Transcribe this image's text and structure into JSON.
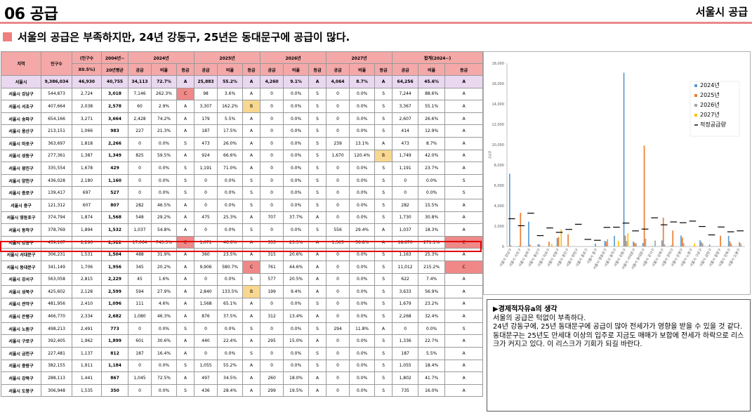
{
  "header": {
    "title": "06 공급",
    "right": "서울시 공급"
  },
  "subtitle": "서울의 공급은 부족하지만, 24년 강동구, 25년은 동대문구에 공급이 많다.",
  "table": {
    "headers_top": [
      "지역",
      "인구수",
      "(인구수",
      "2004년~",
      "2024년",
      "2025년",
      "2026년",
      "2027년",
      "합계(2024~)"
    ],
    "headers_sub": [
      "X0.5%)",
      "20년평균",
      "공급",
      "비율",
      "등급",
      "공급",
      "비율",
      "등급",
      "공급",
      "비율",
      "등급",
      "공급",
      "비율",
      "등급",
      "공급",
      "비율",
      "등급"
    ],
    "rows": [
      [
        "서울시",
        "9,386,034",
        "46,930",
        "40,755",
        "34,113",
        "72.7%",
        "A",
        "25,883",
        "55.2%",
        "A",
        "4,260",
        "9.1%",
        "A",
        "4,064",
        "8.7%",
        "A",
        "64,256",
        "45.6%",
        "A"
      ],
      [
        "서울시 강남구",
        "544,873",
        "2,724",
        "3,018",
        "7,146",
        "262.3%",
        "C",
        "98",
        "3.6%",
        "A",
        "0",
        "0.0%",
        "S",
        "0",
        "0.0%",
        "S",
        "7,244",
        "88.6%",
        "A"
      ],
      [
        "서울시 서초구",
        "407,664",
        "2,038",
        "2,578",
        "60",
        "2.9%",
        "A",
        "3,307",
        "162.2%",
        "B",
        "0",
        "0.0%",
        "S",
        "0",
        "0.0%",
        "S",
        "3,367",
        "55.1%",
        "A"
      ],
      [
        "서울시 송파구",
        "654,166",
        "3,271",
        "3,664",
        "2,428",
        "74.2%",
        "A",
        "179",
        "5.5%",
        "A",
        "0",
        "0.0%",
        "S",
        "0",
        "0.0%",
        "S",
        "2,607",
        "26.6%",
        "A"
      ],
      [
        "서울시 용산구",
        "213,151",
        "1,066",
        "983",
        "227",
        "21.3%",
        "A",
        "187",
        "17.5%",
        "A",
        "0",
        "0.0%",
        "S",
        "0",
        "0.0%",
        "S",
        "414",
        "12.9%",
        "A"
      ],
      [
        "서울시 마포구",
        "363,697",
        "1,818",
        "2,266",
        "0",
        "0.0%",
        "S",
        "473",
        "26.0%",
        "A",
        "0",
        "0.0%",
        "S",
        "239",
        "13.1%",
        "A",
        "473",
        "8.7%",
        "A"
      ],
      [
        "서울시 성동구",
        "277,361",
        "1,387",
        "1,349",
        "825",
        "59.5%",
        "A",
        "924",
        "66.6%",
        "A",
        "0",
        "0.0%",
        "S",
        "1,670",
        "120.4%",
        "B",
        "1,749",
        "42.0%",
        "A"
      ],
      [
        "서울시 광진구",
        "335,554",
        "1,678",
        "429",
        "0",
        "0.0%",
        "S",
        "1,191",
        "71.0%",
        "A",
        "0",
        "0.0%",
        "S",
        "0",
        "0.0%",
        "S",
        "1,191",
        "23.7%",
        "A"
      ],
      [
        "서울시 양천구",
        "436,028",
        "2,180",
        "1,160",
        "0",
        "0.0%",
        "S",
        "0",
        "0.0%",
        "S",
        "0",
        "0.0%",
        "S",
        "0",
        "0.0%",
        "S",
        "0",
        "0.0%",
        "S"
      ],
      [
        "서울시 종로구",
        "139,417",
        "697",
        "527",
        "0",
        "0.0%",
        "S",
        "0",
        "0.0%",
        "S",
        "0",
        "0.0%",
        "S",
        "0",
        "0.0%",
        "S",
        "0",
        "0.0%",
        "S"
      ],
      [
        "서울시 중구",
        "121,312",
        "607",
        "807",
        "282",
        "46.5%",
        "A",
        "0",
        "0.0%",
        "S",
        "0",
        "0.0%",
        "S",
        "0",
        "0.0%",
        "S",
        "282",
        "15.5%",
        "A"
      ],
      [
        "서울시 영등포구",
        "374,794",
        "1,874",
        "1,568",
        "548",
        "29.2%",
        "A",
        "475",
        "25.3%",
        "A",
        "707",
        "37.7%",
        "A",
        "0",
        "0.0%",
        "S",
        "1,730",
        "30.8%",
        "A"
      ],
      [
        "서울시 동작구",
        "378,769",
        "1,894",
        "1,532",
        "1,037",
        "54.8%",
        "A",
        "0",
        "0.0%",
        "S",
        "0",
        "0.0%",
        "S",
        "556",
        "29.4%",
        "A",
        "1,037",
        "18.3%",
        "A"
      ],
      [
        "서울시 강동구",
        "459,167",
        "2,296",
        "2,922",
        "17,064",
        "743.3%",
        "C",
        "1,071",
        "46.6%",
        "A",
        "535",
        "23.3%",
        "A",
        "1,305",
        "56.8%",
        "A",
        "18,670",
        "271.1%",
        "C"
      ],
      [
        "서울시 서대문구",
        "306,231",
        "1,531",
        "1,504",
        "488",
        "31.9%",
        "A",
        "360",
        "23.5%",
        "A",
        "315",
        "20.6%",
        "A",
        "0",
        "0.0%",
        "S",
        "1,163",
        "25.3%",
        "A"
      ],
      [
        "서울시 동대문구",
        "341,149",
        "1,706",
        "1,956",
        "345",
        "20.2%",
        "A",
        "9,906",
        "580.7%",
        "C",
        "761",
        "44.6%",
        "A",
        "0",
        "0.0%",
        "S",
        "11,012",
        "215.2%",
        "C"
      ],
      [
        "서울시 강서구",
        "563,058",
        "2,815",
        "2,229",
        "45",
        "1.6%",
        "A",
        "0",
        "0.0%",
        "S",
        "577",
        "20.5%",
        "A",
        "0",
        "0.0%",
        "S",
        "622",
        "7.4%",
        "A"
      ],
      [
        "서울시 성북구",
        "425,602",
        "2,128",
        "2,599",
        "594",
        "27.9%",
        "A",
        "2,840",
        "133.5%",
        "B",
        "199",
        "9.4%",
        "A",
        "0",
        "0.0%",
        "S",
        "3,633",
        "56.9%",
        "A"
      ],
      [
        "서울시 관악구",
        "481,956",
        "2,410",
        "1,096",
        "111",
        "4.6%",
        "A",
        "1,568",
        "65.1%",
        "A",
        "0",
        "0.0%",
        "S",
        "0",
        "0.0%",
        "S",
        "1,679",
        "23.2%",
        "A"
      ],
      [
        "서울시 은평구",
        "466,770",
        "2,334",
        "2,682",
        "1,080",
        "46.3%",
        "A",
        "876",
        "37.5%",
        "A",
        "312",
        "13.4%",
        "A",
        "0",
        "0.0%",
        "S",
        "2,268",
        "32.4%",
        "A"
      ],
      [
        "서울시 노원구",
        "498,213",
        "2,491",
        "773",
        "0",
        "0.0%",
        "S",
        "0",
        "0.0%",
        "S",
        "0",
        "0.0%",
        "S",
        "294",
        "11.8%",
        "A",
        "0",
        "0.0%",
        "S"
      ],
      [
        "서울시 구로구",
        "392,405",
        "1,962",
        "1,899",
        "601",
        "30.6%",
        "A",
        "440",
        "22.4%",
        "A",
        "295",
        "15.0%",
        "A",
        "0",
        "0.0%",
        "S",
        "1,336",
        "22.7%",
        "A"
      ],
      [
        "서울시 금천구",
        "227,481",
        "1,137",
        "812",
        "187",
        "16.4%",
        "A",
        "0",
        "0.0%",
        "S",
        "0",
        "0.0%",
        "S",
        "0",
        "0.0%",
        "S",
        "187",
        "5.5%",
        "A"
      ],
      [
        "서울시 중랑구",
        "382,155",
        "1,911",
        "1,184",
        "0",
        "0.0%",
        "S",
        "1,055",
        "55.2%",
        "A",
        "0",
        "0.0%",
        "S",
        "0",
        "0.0%",
        "S",
        "1,055",
        "18.4%",
        "A"
      ],
      [
        "서울시 강북구",
        "288,113",
        "1,441",
        "867",
        "1,045",
        "72.5%",
        "A",
        "497",
        "34.5%",
        "A",
        "260",
        "18.0%",
        "A",
        "0",
        "0.0%",
        "S",
        "1,802",
        "41.7%",
        "A"
      ],
      [
        "서울시 도봉구",
        "306,948",
        "1,535",
        "350",
        "0",
        "0.0%",
        "S",
        "436",
        "28.4%",
        "A",
        "299",
        "19.5%",
        "A",
        "0",
        "0.0%",
        "S",
        "735",
        "16.0%",
        "A"
      ]
    ]
  },
  "colors": {
    "y2024": "#5b9bd5",
    "y2025": "#ed7d31",
    "y2026": "#a5a5a5",
    "y2027": "#ffc000",
    "grade_C": "#f08888",
    "grade_B": "#f8d890",
    "accent": "#e88a8a"
  },
  "chart_data": {
    "type": "bar",
    "categories": [
      "서울시 강남구",
      "서울시 서초구",
      "서울시 송파구",
      "서울시 용산구",
      "서울시 마포구",
      "서울시 성동구",
      "서울시 광진구",
      "서울시 양천구",
      "서울시 종로구",
      "서울시 중구",
      "서울시 영등포구",
      "서울시 동작구",
      "서울시 강동구",
      "서울시 서대문구",
      "서울시 동대문구",
      "서울시 강서구",
      "서울시 성북구",
      "서울시 관악구",
      "서울시 은평구",
      "서울시 노원구",
      "서울시 구로구",
      "서울시 금천구",
      "서울시 중랑구",
      "서울시 강북구",
      "서울시 도봉구"
    ],
    "series": [
      {
        "name": "2024년",
        "values": [
          7146,
          60,
          2428,
          227,
          0,
          825,
          0,
          0,
          0,
          282,
          548,
          1037,
          17064,
          488,
          345,
          45,
          594,
          111,
          1080,
          0,
          601,
          187,
          0,
          1045,
          0
        ]
      },
      {
        "name": "2025년",
        "values": [
          98,
          3307,
          179,
          187,
          473,
          924,
          1191,
          0,
          0,
          0,
          475,
          0,
          1071,
          360,
          9906,
          0,
          2840,
          1568,
          876,
          0,
          440,
          0,
          1055,
          497,
          436
        ]
      },
      {
        "name": "2026년",
        "values": [
          0,
          0,
          0,
          0,
          0,
          0,
          0,
          0,
          0,
          0,
          707,
          0,
          535,
          315,
          761,
          577,
          199,
          0,
          312,
          0,
          295,
          0,
          0,
          260,
          299
        ]
      },
      {
        "name": "2027년",
        "values": [
          0,
          0,
          0,
          0,
          239,
          1670,
          0,
          0,
          0,
          0,
          0,
          556,
          1305,
          0,
          0,
          0,
          0,
          0,
          0,
          294,
          0,
          0,
          0,
          0,
          0
        ]
      },
      {
        "name": "적정공급량",
        "values": [
          2724,
          2038,
          3271,
          1066,
          1818,
          1387,
          1678,
          2180,
          697,
          607,
          1874,
          1894,
          2296,
          1531,
          1706,
          2815,
          2128,
          2410,
          2334,
          2491,
          1962,
          1137,
          1911,
          1441,
          1535
        ]
      }
    ],
    "ylim": [
      0,
      18000
    ],
    "yticks": [
      "0",
      "2,000",
      "4,000",
      "6,000",
      "8,000",
      "10,000",
      "12,000",
      "14,000",
      "16,000",
      "18,000"
    ],
    "grid": false,
    "legend_position": "right",
    "ylabel": "공급량"
  },
  "note": {
    "title": "▶경제적자유a의 생각",
    "lines": [
      "서울의 공급은 턱없이 부족하다.",
      "24년 강동구에, 25년 동대문구에 공급이 많아 전세가가 영향을 받을 수 있을 것 같다.",
      "동대문구는 25년도 만세대 이상의 입주로 지금도 매매가 보합에 전세가 하락으로 리스크가 커지고 있다. 이 리스크가 기회가 되길 바란다."
    ]
  }
}
